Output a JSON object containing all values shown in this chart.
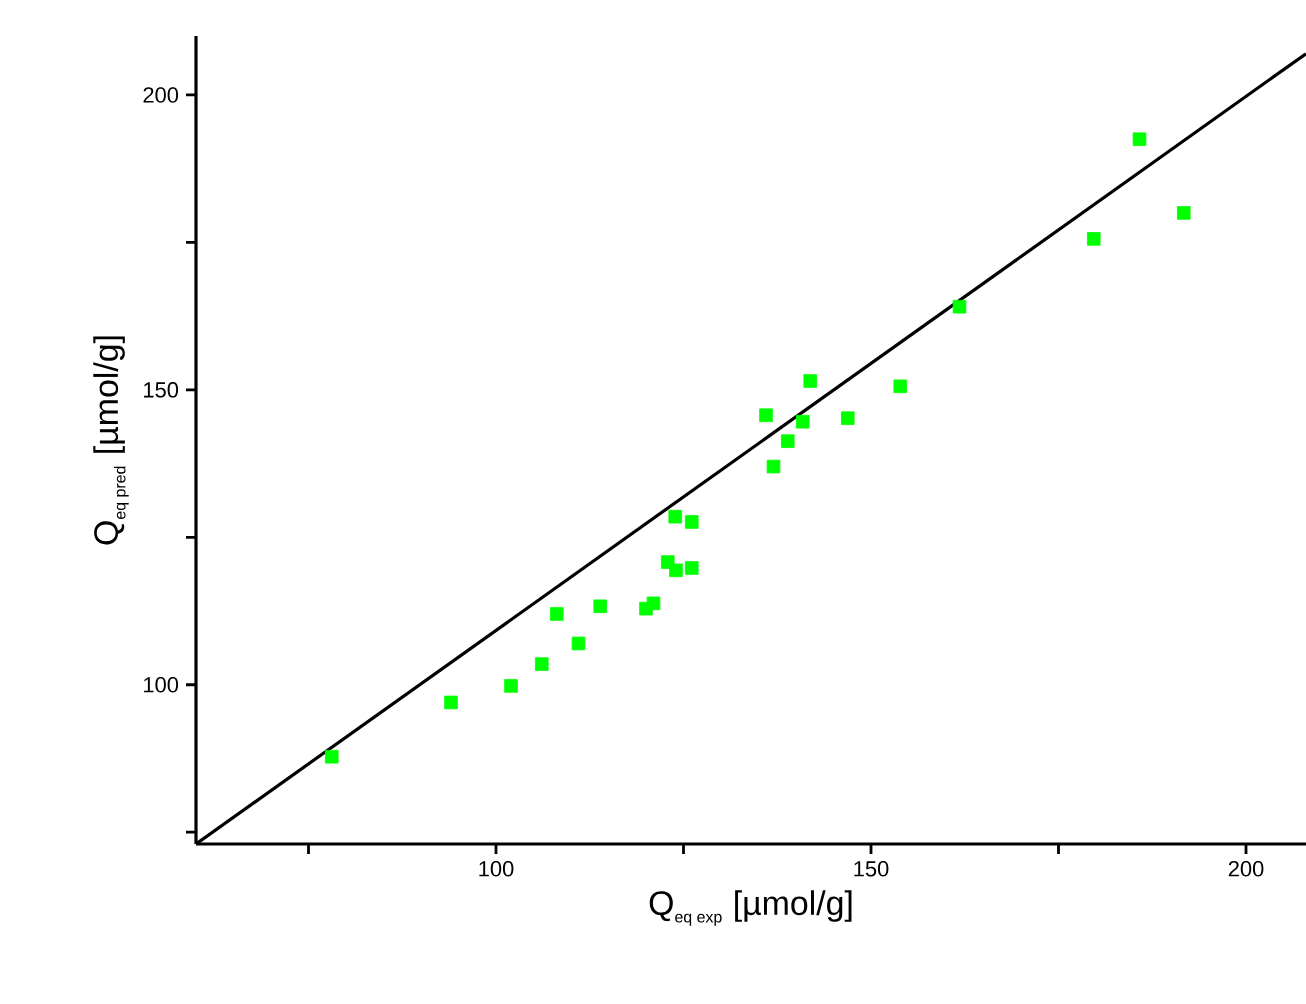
{
  "chart_data": {
    "type": "scatter",
    "xlabel": "\\mbox{Q}_{\\mbox{\\footnotesize eq exp}}\\ \\mbox{[µmol/g]}",
    "ylabel": "\\mbox{Q}_{\\mbox{\\footnotesize eq pred}}\\ \\mbox{[µmol/g]}",
    "xlim": [
      60,
      208
    ],
    "ylim": [
      73,
      210
    ],
    "xticks": [
      {
        "value": 75,
        "label": null
      },
      100,
      {
        "value": 125,
        "label": null
      },
      150,
      {
        "value": 175,
        "label": null
      },
      200
    ],
    "yticks": [
      {
        "value": 75,
        "label": null
      },
      100,
      {
        "value": 125,
        "label": null
      },
      150,
      {
        "value": 175,
        "label": null
      },
      200
    ],
    "grid": false,
    "series": [
      {
        "marker": "square",
        "color": "#00ff00",
        "x": [
          78.1,
          94.0,
          102.0,
          106.1,
          108.1,
          111.0,
          113.9,
          120.0,
          121.0,
          122.9,
          124.0,
          126.1,
          123.9,
          126.1,
          137.0,
          138.9,
          136.0,
          140.9,
          141.9,
          146.9,
          153.9,
          161.8,
          179.7,
          185.8,
          191.7
        ],
        "values": [
          87.8,
          97.0,
          99.8,
          103.5,
          112.0,
          107.0,
          113.3,
          112.9,
          113.8,
          120.8,
          119.4,
          119.8,
          128.5,
          127.6,
          137.0,
          141.3,
          145.7,
          144.6,
          151.5,
          145.2,
          150.6,
          164.1,
          175.6,
          192.5,
          180.0
        ]
      },
      {
        "type": "line",
        "marker": "none",
        "color": "#000000",
        "x": [
          60,
          208
        ],
        "values": [
          73,
          207
        ]
      }
    ]
  }
}
